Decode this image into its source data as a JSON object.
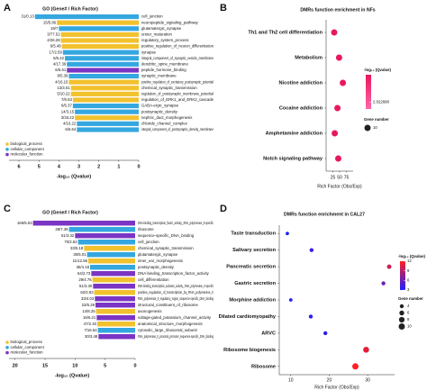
{
  "chart_data": [
    {
      "type": "bar",
      "orientation": "horizontal",
      "panel_label": "A",
      "title": "GO (Gene# / Rich Factor)",
      "categories": [
        "cell_junction",
        "neuropeptide_signaling_pathway",
        "glutamatergic_synapse",
        "ureter_maturation",
        "regulatory_system_process",
        "positive_regulation_of_neuron_differentiation",
        "synapse",
        "integral_component_of_synaptic_vesicle_membrane",
        "dendritic_spine_membrane",
        "peptide_hormone_binding",
        "synaptic_membrane",
        "positive_regulation_of_excitatory_postsynaptic_potential",
        "chemical_synaptic_transmission",
        "regulation_of_postsynaptic_membrane_potential",
        "regulation_of_ERK1_and_ERK2_cascade",
        "GABA-ergic_synapse",
        "postsynaptic_density",
        "nephric_duct_morphogenesis",
        "chloride_channel_complex",
        "integral_component_of_postsynaptic_density_membrane"
      ],
      "values": [
        5.2,
        4.1,
        4.0,
        3.9,
        3.9,
        3.85,
        3.8,
        3.7,
        3.6,
        3.6,
        3.5,
        3.5,
        3.4,
        3.4,
        3.3,
        3.3,
        3.2,
        3.2,
        3.1,
        3.1
      ],
      "bar_labels": [
        "31/0.13",
        "15/5.86",
        "19/7",
        "3/77.52",
        "4/26.28",
        "6/5.48",
        "17/2.59",
        "6/6.42",
        "4/17.39",
        "6/6.51",
        "8/5.39",
        "4/16.15",
        "13/3.01",
        "5/10.22",
        "7/6.53",
        "6/6.37",
        "14/3.15",
        "3/33.22",
        "4/16.22",
        "6/6.64"
      ],
      "groups": [
        "cellular_component",
        "biological_process",
        "cellular_component",
        "biological_process",
        "biological_process",
        "biological_process",
        "cellular_component",
        "cellular_component",
        "cellular_component",
        "molecular_function",
        "cellular_component",
        "biological_process",
        "biological_process",
        "biological_process",
        "biological_process",
        "cellular_component",
        "cellular_component",
        "biological_process",
        "cellular_component",
        "cellular_component"
      ],
      "legend": [
        {
          "name": "biological_process",
          "color": "#f2c12e"
        },
        {
          "name": "cellular_component",
          "color": "#35a7e0"
        },
        {
          "name": "molecular_function",
          "color": "#7b35c4"
        }
      ],
      "xlabel": "-log₁₀ (Qvalue)",
      "xlim": [
        0,
        6.5
      ],
      "xticks": [
        0,
        1,
        2,
        3,
        4,
        5,
        6
      ],
      "x_reversed": true
    },
    {
      "type": "dot",
      "panel_label": "B",
      "title": "DMRs function enrichment in NFs",
      "categories": [
        "Th1 and Th2 cell differentiation",
        "Metabolism",
        "Nicotine addiction",
        "Cocaine addiction",
        "Amphetamine addiction",
        "Notch signaling pathway"
      ],
      "values": [
        30,
        48,
        62,
        42,
        32,
        45
      ],
      "gene_numbers": [
        10,
        10,
        10,
        10,
        10,
        10
      ],
      "color": "#e8175d",
      "xlabel": "Rich Factor (Obs/Exp)",
      "xlim": [
        0,
        100
      ],
      "xticks": [
        25,
        50,
        75
      ],
      "color_legend": {
        "title": "-log₁₀ (Qvalue)",
        "colors": [
          "#ff66a8",
          "#e8175d"
        ],
        "ticks": [
          2.022688
        ]
      },
      "size_legend": {
        "title": "Gene number",
        "values": [
          10
        ]
      }
    },
    {
      "type": "bar",
      "orientation": "horizontal",
      "panel_label": "C",
      "title": "GO (Gene# / Rich Factor)",
      "categories": [
        "DNA-binding_transcription_factor_activity,_RNA_polymerase_II-specific",
        "ribosome",
        "sequence-specific_DNA_binding",
        "cell_junction",
        "chemical_synaptic_transmission",
        "glutamatergic_synapse",
        "inner_ear_morphogenesis",
        "postsynaptic_density",
        "DNA-binding_transcription_factor_activity",
        "cell_differentiation",
        "DNA-binding_transcription_activator_activity,_RNA_polymerase_II-specific",
        "positive_regulation_of_transcription_by_RNA_polymerase_II",
        "RNA_polymerase_II_regulatory_region_sequence-specific_DNA_binding",
        "structural_constituent_of_ribosome",
        "axonogenesis",
        "voltage-gated_potassium_channel_activity",
        "anatomical_structure_morphogenesis",
        "cytosolic_large_ribosomal_subunit",
        "RNA_polymerase_II_proximal_promoter_sequence-specific_DNA_binding"
      ],
      "values": [
        17,
        11,
        10,
        9.5,
        8.5,
        8,
        7.8,
        7.5,
        7.3,
        7.1,
        7,
        6.8,
        6.7,
        6.6,
        6.5,
        6.4,
        6.3,
        6.2,
        6.1
      ],
      "bar_labels": [
        "166/5.53",
        "28/7.36",
        "61/3.32",
        "70/2.62",
        "33/5.18",
        "30/5.01",
        "11/12.56",
        "35/4.18",
        "64/2.73",
        "29/4.76",
        "51/3.30",
        "62/2.83",
        "33/4.03",
        "23/5.29",
        "14/8.25",
        "16/6.21",
        "47/2.40",
        "7/16.54",
        "30/3.48"
      ],
      "groups": [
        "molecular_function",
        "cellular_component",
        "molecular_function",
        "cellular_component",
        "biological_process",
        "cellular_component",
        "biological_process",
        "cellular_component",
        "molecular_function",
        "biological_process",
        "molecular_function",
        "biological_process",
        "molecular_function",
        "molecular_function",
        "biological_process",
        "molecular_function",
        "biological_process",
        "cellular_component",
        "molecular_function"
      ],
      "legend": [
        {
          "name": "biological_process",
          "color": "#f2c12e"
        },
        {
          "name": "cellular_component",
          "color": "#35a7e0"
        },
        {
          "name": "molecular_function",
          "color": "#7b35c4"
        }
      ],
      "xlabel": "-log₁₀ (Qvalue)",
      "xlim": [
        0,
        21
      ],
      "xticks": [
        0,
        5,
        10,
        15,
        20
      ],
      "x_reversed": true
    },
    {
      "type": "dot",
      "panel_label": "D",
      "title": "DMRs function enrichment in CAL27",
      "categories": [
        "Taste transduction",
        "Salivary secretion",
        "Pancreatic secretion",
        "Gastric secretion",
        "Morphine addiction",
        "Dilated cardiomyopathy",
        "ARVC",
        "Ribosome biogenesis",
        "Ribosome"
      ],
      "values": [
        9.1,
        15.4,
        35.6,
        34.1,
        10,
        15.2,
        19,
        29.6,
        26.8
      ],
      "gene_numbers": [
        3,
        4,
        5,
        4,
        3,
        4,
        4,
        9,
        10
      ],
      "qvalues": [
        3,
        4,
        10,
        6,
        3,
        3.5,
        3.5,
        11,
        12
      ],
      "xlabel": "Rich Factor (Obs/Exp)",
      "xlim": [
        7,
        37
      ],
      "xticks": [
        10,
        20,
        30
      ],
      "color_legend": {
        "title": "-log₁₀ (Qvalue)",
        "colors": [
          "#1f1fff",
          "#ff1f1f"
        ],
        "lim": [
          3,
          12
        ],
        "ticks": [
          3,
          6,
          9,
          12
        ]
      },
      "size_legend": {
        "title": "Gene number",
        "values": [
          4,
          6,
          8,
          10
        ]
      }
    }
  ]
}
